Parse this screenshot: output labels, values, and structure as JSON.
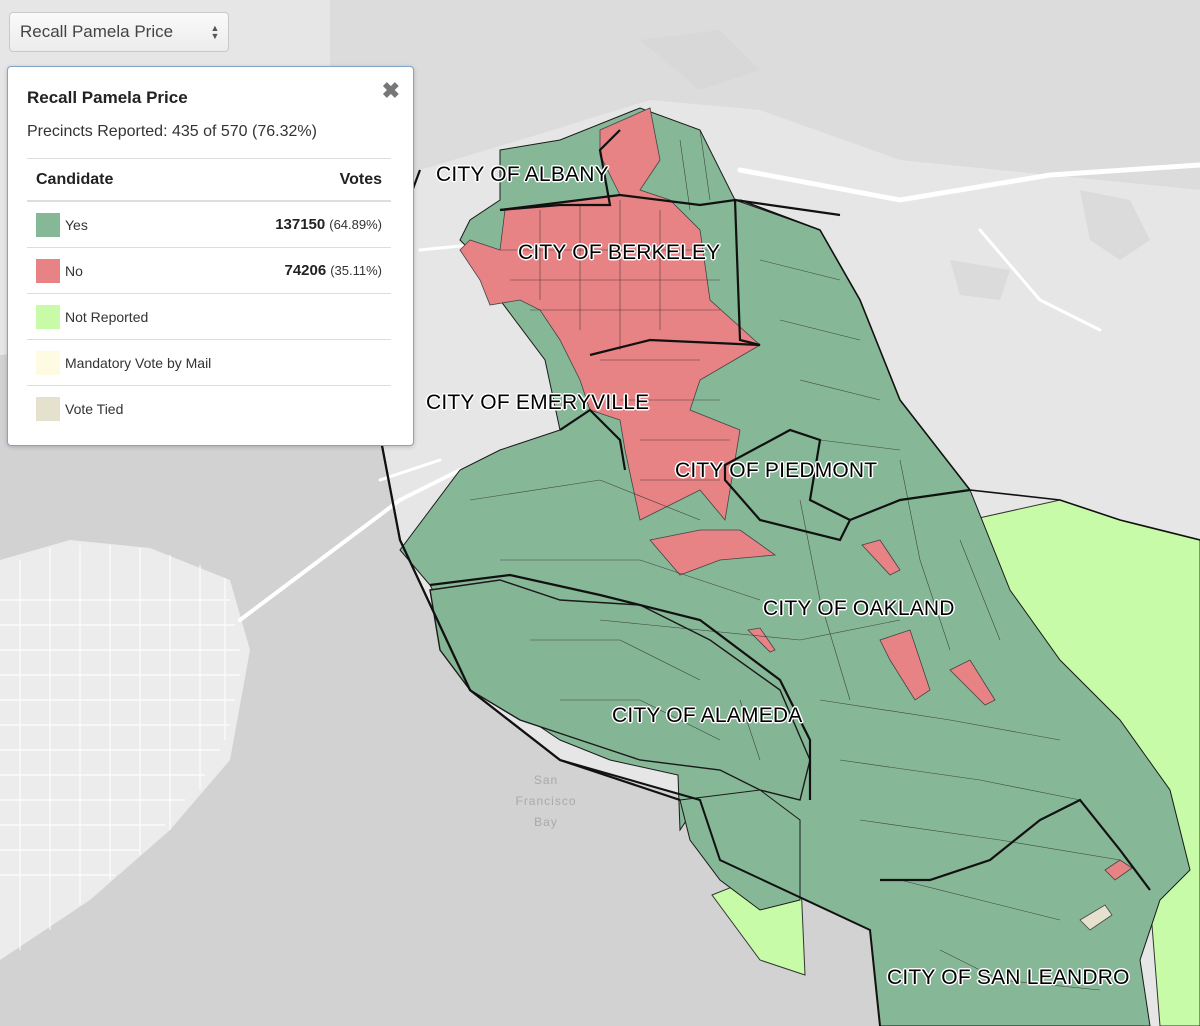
{
  "selector": {
    "selected": "Recall Pamela Price"
  },
  "panel": {
    "title": "Recall Pamela Price",
    "precincts": "Precincts Reported: 435 of 570 (76.32%)",
    "close_icon": "close-icon",
    "columns": {
      "candidate": "Candidate",
      "votes": "Votes"
    },
    "legend": [
      {
        "label": "Yes",
        "color": "#86b797",
        "votes": "137150",
        "pct": "(64.89%)"
      },
      {
        "label": "No",
        "color": "#e78384",
        "votes": "74206",
        "pct": "(35.11%)"
      },
      {
        "label": "Not Reported",
        "color": "#c8fba8",
        "votes": "",
        "pct": ""
      },
      {
        "label": "Mandatory Vote by Mail",
        "color": "#fffbe3",
        "votes": "",
        "pct": ""
      },
      {
        "label": "Vote Tied",
        "color": "#e6e1cc",
        "votes": "",
        "pct": ""
      }
    ]
  },
  "map": {
    "cities": [
      "CITY OF ALBANY",
      "CITY OF BERKELEY",
      "CITY OF EMERYVILLE",
      "CITY OF PIEDMONT",
      "CITY OF OAKLAND",
      "CITY OF ALAMEDA",
      "CITY OF SAN LEANDRO"
    ],
    "water_label": [
      "San",
      "Francisco",
      "Bay"
    ]
  }
}
